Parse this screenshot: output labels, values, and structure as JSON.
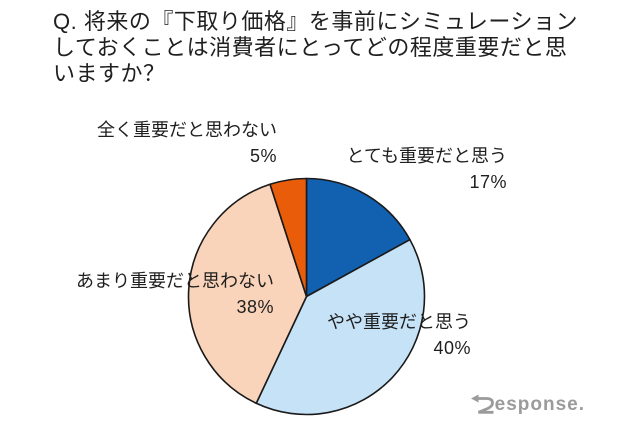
{
  "title": {
    "full_text": "Q. 将来の『下取り価格』を事前にシミュレーションしておくことは消費者にとってどの程度重要だと思いますか？",
    "lines": [
      "Q. 将来の『下取り価格』を事前にシミュレーション",
      "しておくことは消費者にとってどの程度重要だと思",
      "いますか？"
    ]
  },
  "chart_data": {
    "type": "pie",
    "title": "Q. 将来の『下取り価格』を事前にシミュレーションしておくことは消費者にとってどの程度重要だと思いますか？",
    "unit": "%",
    "start_angle_deg": 0,
    "direction": "clockwise",
    "outline_color": "#1a1a1a",
    "background": "#ffffff",
    "slices": [
      {
        "label": "とても重要だと思う",
        "value": 17,
        "percent_label": "17%",
        "color": "#1261b1"
      },
      {
        "label": "やや重要だと思う",
        "value": 40,
        "percent_label": "40%",
        "color": "#c6e2f7"
      },
      {
        "label": "あまり重要だと思わない",
        "value": 38,
        "percent_label": "38%",
        "color": "#f9d4ba"
      },
      {
        "label": "全く重要だと思わない",
        "value": 5,
        "percent_label": "5%",
        "color": "#e85c0a"
      }
    ]
  },
  "watermark": {
    "full_text": "Response.",
    "text_after_r": "esponse.",
    "color": "#9b9b9b"
  }
}
